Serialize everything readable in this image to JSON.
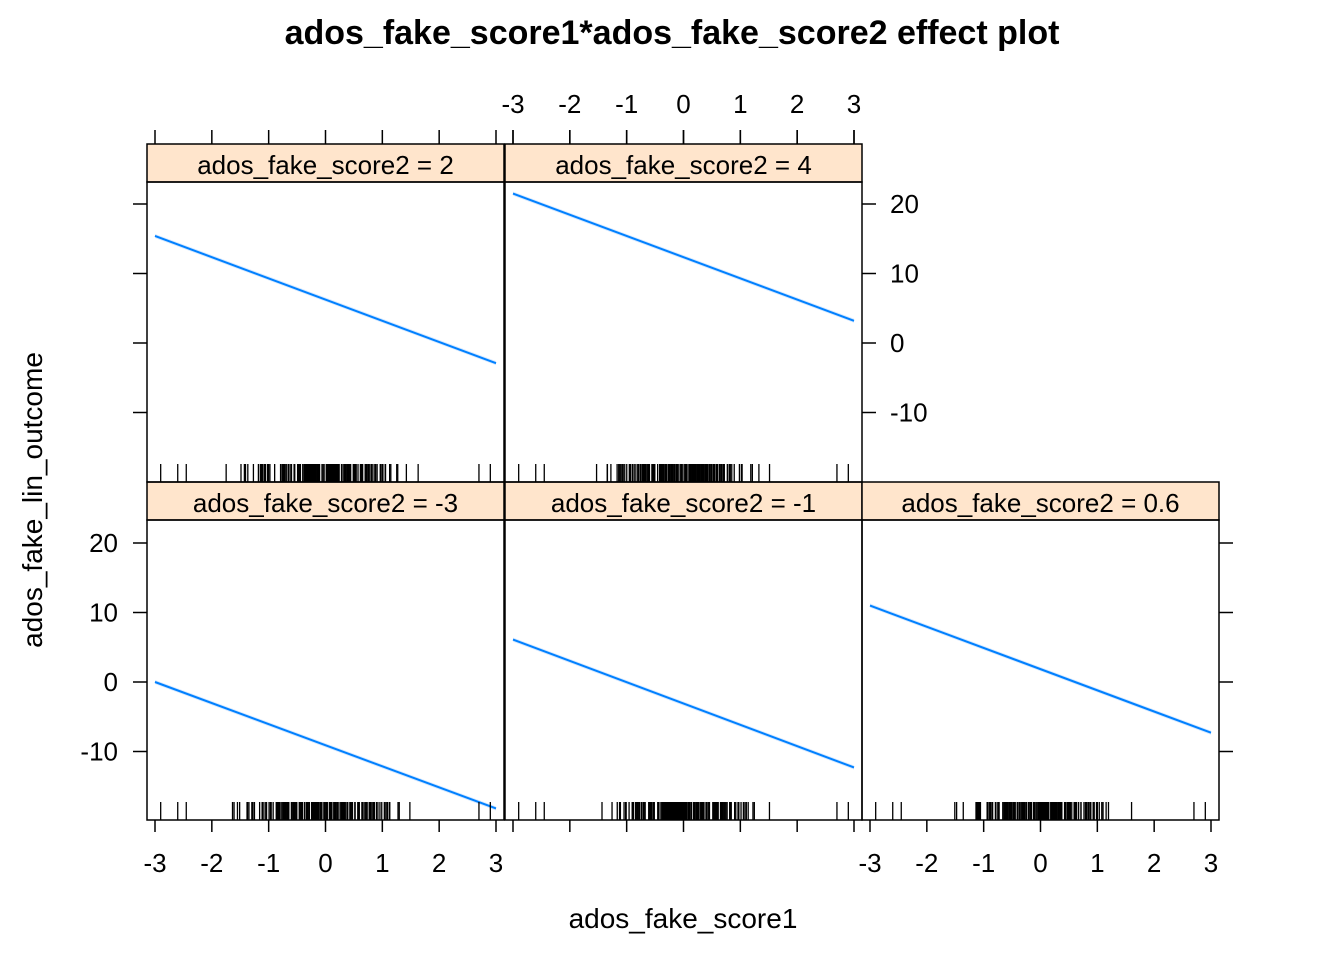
{
  "chart_data": {
    "type": "line",
    "title": "ados_fake_score1*ados_fake_score2 effect plot",
    "xlabel": "ados_fake_score1",
    "ylabel": "ados_fake_lin_outcome",
    "xlim": [
      -3,
      3
    ],
    "ylim": [
      -19,
      23
    ],
    "x_ticks": [
      "-3",
      "-2",
      "-1",
      "0",
      "1",
      "2",
      "3"
    ],
    "y_ticks": [
      "-10",
      "0",
      "10",
      "20"
    ],
    "line_color": "#0080ff",
    "strip_color": "#ffe5cc",
    "panels": [
      {
        "strip": "ados_fake_score2 = -3",
        "x": [
          -3,
          3
        ],
        "y": [
          0.0,
          -18.2
        ]
      },
      {
        "strip": "ados_fake_score2 = -1",
        "x": [
          -3,
          3
        ],
        "y": [
          6.1,
          -12.3
        ]
      },
      {
        "strip": "ados_fake_score2 = 0.6",
        "x": [
          -3,
          3
        ],
        "y": [
          11.0,
          -7.3
        ]
      },
      {
        "strip": "ados_fake_score2 = 2",
        "x": [
          -3,
          3
        ],
        "y": [
          15.4,
          -2.9
        ]
      },
      {
        "strip": "ados_fake_score2 = 4",
        "x": [
          -3,
          3
        ],
        "y": [
          21.5,
          3.2
        ]
      }
    ]
  }
}
